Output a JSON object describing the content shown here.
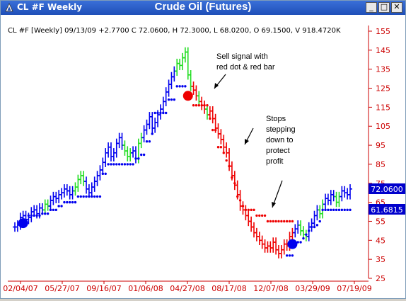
{
  "window": {
    "title": "CL #F Weekly",
    "chart_title": "Crude Oil (Futures)",
    "buttons": {
      "minimize": "_",
      "maximize": "□",
      "close": "✕"
    }
  },
  "info_line": "CL #F [Weekly] 09/13/09 +2.7700 C 72.0600, H 72.3000, L 68.0200, O 69.1500, V 918.4720K",
  "annotations": {
    "sell": [
      "Sell signal with",
      "red dot & red bar"
    ],
    "stops": [
      "Stops",
      "stepping",
      "down to",
      "protect",
      "profit"
    ]
  },
  "price_labels": {
    "last": "72.0600",
    "stop": "61.6815"
  },
  "colors": {
    "up": "#0000ee",
    "down": "#ee0000",
    "neutral": "#22dd22",
    "axis": "#cc0000",
    "label_bg": "#0000cc"
  },
  "chart_data": {
    "type": "bar",
    "title": "Crude Oil (Futures)",
    "xlabel": "",
    "ylabel": "",
    "ylim": [
      25,
      155
    ],
    "y_ticks": [
      155,
      145,
      135,
      125,
      115,
      105,
      95,
      85,
      75,
      65,
      55,
      45,
      35,
      25
    ],
    "x_tick_labels": [
      "02/04/07",
      "05/27/07",
      "09/16/07",
      "01/06/08",
      "04/27/08",
      "08/17/08",
      "12/07/08",
      "03/29/09",
      "07/19/09"
    ],
    "close_series": [
      52,
      53,
      57,
      58,
      56,
      57,
      60,
      61,
      59,
      62,
      61,
      64,
      63,
      66,
      68,
      67,
      69,
      70,
      72,
      71,
      69,
      71,
      73,
      77,
      79,
      76,
      72,
      70,
      73,
      76,
      79,
      82,
      86,
      91,
      94,
      89,
      91,
      96,
      99,
      95,
      92,
      89,
      91,
      92,
      88,
      96,
      99,
      103,
      106,
      110,
      104,
      107,
      111,
      114,
      118,
      123,
      127,
      131,
      134,
      138,
      137,
      141,
      144,
      132,
      126,
      124,
      121,
      118,
      116,
      114,
      111,
      113,
      109,
      104,
      101,
      98,
      94,
      91,
      84,
      79,
      74,
      69,
      63,
      61,
      58,
      55,
      52,
      49,
      47,
      45,
      43,
      41,
      42,
      41,
      44,
      40,
      38,
      40,
      43,
      42,
      47,
      49,
      51,
      53,
      50,
      48,
      47,
      52,
      54,
      58,
      61,
      59,
      64,
      67,
      66,
      69,
      68,
      65,
      68,
      71,
      70,
      69,
      72
    ],
    "stop_series": [
      {
        "name": "trailing_stop_blue",
        "points": [
          [
            3,
            54.5
          ],
          [
            4,
            54.5
          ],
          [
            5,
            58
          ],
          [
            6,
            58
          ],
          [
            7,
            58
          ],
          [
            8,
            58
          ],
          [
            9,
            58
          ],
          [
            10,
            59
          ],
          [
            11,
            59
          ],
          [
            12,
            59
          ],
          [
            13,
            61
          ],
          [
            14,
            61
          ],
          [
            15,
            61
          ],
          [
            16,
            63
          ],
          [
            17,
            63
          ],
          [
            18,
            65
          ],
          [
            19,
            65
          ],
          [
            20,
            65
          ],
          [
            21,
            65
          ],
          [
            22,
            65
          ],
          [
            23,
            68
          ],
          [
            24,
            68
          ],
          [
            25,
            68
          ],
          [
            26,
            68
          ],
          [
            27,
            68
          ],
          [
            28,
            68
          ],
          [
            29,
            68
          ],
          [
            30,
            68
          ],
          [
            31,
            68
          ],
          [
            32,
            80
          ],
          [
            33,
            80
          ],
          [
            34,
            85
          ],
          [
            35,
            85
          ],
          [
            36,
            85
          ],
          [
            37,
            85
          ],
          [
            38,
            85
          ],
          [
            39,
            85
          ],
          [
            40,
            85
          ],
          [
            41,
            85
          ],
          [
            42,
            85
          ],
          [
            43,
            85
          ],
          [
            44,
            88
          ],
          [
            45,
            88
          ],
          [
            46,
            90
          ],
          [
            47,
            90
          ],
          [
            48,
            97
          ],
          [
            49,
            97
          ],
          [
            50,
            101
          ],
          [
            51,
            112
          ],
          [
            52,
            112
          ],
          [
            53,
            112
          ],
          [
            54,
            112
          ],
          [
            55,
            112
          ],
          [
            56,
            119
          ],
          [
            57,
            119
          ],
          [
            58,
            119
          ],
          [
            59,
            126
          ],
          [
            60,
            126
          ],
          [
            61,
            126
          ],
          [
            62,
            126
          ]
        ]
      },
      {
        "name": "trailing_stop_red",
        "points": [
          [
            63,
            122
          ],
          [
            64,
            122
          ],
          [
            65,
            116
          ],
          [
            66,
            116
          ],
          [
            67,
            116
          ],
          [
            68,
            116
          ],
          [
            69,
            116
          ],
          [
            70,
            116
          ],
          [
            71,
            109
          ],
          [
            72,
            103
          ],
          [
            73,
            103
          ],
          [
            74,
            94
          ],
          [
            75,
            94
          ],
          [
            76,
            91
          ],
          [
            77,
            87
          ],
          [
            78,
            84
          ],
          [
            79,
            78
          ],
          [
            80,
            75
          ],
          [
            81,
            68
          ],
          [
            82,
            66
          ],
          [
            83,
            63
          ],
          [
            84,
            61
          ],
          [
            85,
            61
          ],
          [
            86,
            61
          ],
          [
            87,
            61
          ],
          [
            88,
            58
          ],
          [
            89,
            58
          ],
          [
            90,
            58
          ],
          [
            91,
            58
          ],
          [
            92,
            55
          ],
          [
            93,
            55
          ],
          [
            94,
            55
          ],
          [
            95,
            55
          ],
          [
            96,
            55
          ],
          [
            97,
            55
          ],
          [
            98,
            55
          ],
          [
            99,
            55
          ],
          [
            100,
            55
          ],
          [
            101,
            55
          ]
        ]
      },
      {
        "name": "trailing_stop_blue_2",
        "points": [
          [
            99,
            37
          ],
          [
            100,
            37
          ],
          [
            101,
            37
          ],
          [
            102,
            42
          ],
          [
            103,
            44
          ],
          [
            104,
            44
          ],
          [
            105,
            46
          ],
          [
            106,
            48
          ],
          [
            107,
            50
          ],
          [
            108,
            52
          ],
          [
            109,
            52
          ],
          [
            110,
            53
          ],
          [
            111,
            55
          ],
          [
            112,
            61
          ],
          [
            113,
            61
          ],
          [
            114,
            61
          ],
          [
            115,
            61
          ],
          [
            116,
            61
          ],
          [
            117,
            61
          ],
          [
            118,
            61
          ],
          [
            119,
            61
          ],
          [
            120,
            61
          ],
          [
            121,
            61
          ],
          [
            122,
            61
          ]
        ]
      }
    ]
  }
}
